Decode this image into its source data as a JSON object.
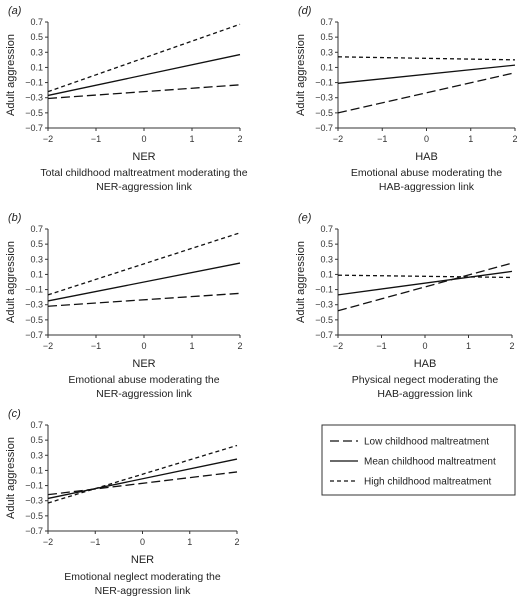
{
  "legend": {
    "entries": [
      {
        "label": "Low childhood maltreatment",
        "style": "long-dash"
      },
      {
        "label": "Mean childhood maltreatment",
        "style": "solid"
      },
      {
        "label": "High childhood maltreatment",
        "style": "short-dash"
      }
    ]
  },
  "chart_data": [
    {
      "panel": "(a)",
      "type": "line",
      "xlabel": "NER",
      "ylabel": "Adult aggression",
      "caption": [
        "Total childhood maltreatment moderating the",
        "NER-aggression link"
      ],
      "xlim": [
        -2,
        2
      ],
      "ylim": [
        -0.7,
        0.7
      ],
      "xticks": [
        "-2",
        "-1",
        "0",
        "1",
        "2"
      ],
      "yticks": [
        "0.7",
        "0.5",
        "0.3",
        "0.1",
        "-0.1",
        "-0.3",
        "-0.5",
        "-0.7"
      ],
      "x": [
        -2,
        2
      ],
      "series": [
        {
          "name": "Low childhood maltreatment",
          "style": "long-dash",
          "values": [
            -0.31,
            -0.13
          ]
        },
        {
          "name": "Mean childhood maltreatment",
          "style": "solid",
          "values": [
            -0.27,
            0.27
          ]
        },
        {
          "name": "High childhood maltreatment",
          "style": "short-dash",
          "values": [
            -0.22,
            0.67
          ]
        }
      ]
    },
    {
      "panel": "(b)",
      "type": "line",
      "xlabel": "NER",
      "ylabel": "Adult aggression",
      "caption": [
        "Emotional abuse moderating the",
        "NER-aggression link"
      ],
      "xlim": [
        -2,
        2
      ],
      "ylim": [
        -0.7,
        0.7
      ],
      "xticks": [
        "-2",
        "-1",
        "0",
        "1",
        "2"
      ],
      "yticks": [
        "0.7",
        "0.5",
        "0.3",
        "0.1",
        "-0.1",
        "-0.3",
        "-0.5",
        "-0.7"
      ],
      "x": [
        -2,
        2
      ],
      "series": [
        {
          "name": "Low childhood maltreatment",
          "style": "long-dash",
          "values": [
            -0.32,
            -0.15
          ]
        },
        {
          "name": "Mean childhood maltreatment",
          "style": "solid",
          "values": [
            -0.25,
            0.25
          ]
        },
        {
          "name": "High childhood maltreatment",
          "style": "short-dash",
          "values": [
            -0.17,
            0.65
          ]
        }
      ]
    },
    {
      "panel": "(c)",
      "type": "line",
      "xlabel": "NER",
      "ylabel": "Adult aggression",
      "caption": [
        "Emotional neglect moderating the",
        "NER-aggression link"
      ],
      "xlim": [
        -2,
        2
      ],
      "ylim": [
        -0.7,
        0.7
      ],
      "xticks": [
        "-2",
        "-1",
        "0",
        "1",
        "2"
      ],
      "yticks": [
        "0.7",
        "0.5",
        "0.3",
        "0.1",
        "-0.1",
        "-0.3",
        "-0.5",
        "-0.7"
      ],
      "x": [
        -2,
        2
      ],
      "series": [
        {
          "name": "Low childhood maltreatment",
          "style": "long-dash",
          "values": [
            -0.22,
            0.08
          ]
        },
        {
          "name": "Mean childhood maltreatment",
          "style": "solid",
          "values": [
            -0.27,
            0.25
          ]
        },
        {
          "name": "High childhood maltreatment",
          "style": "short-dash",
          "values": [
            -0.33,
            0.43
          ]
        }
      ]
    },
    {
      "panel": "(d)",
      "type": "line",
      "xlabel": "HAB",
      "ylabel": "Adult aggression",
      "caption": [
        "Emotional abuse moderating the",
        "HAB-aggression link"
      ],
      "xlim": [
        -2,
        2
      ],
      "ylim": [
        -0.7,
        0.7
      ],
      "xticks": [
        "-2",
        "-1",
        "0",
        "1",
        "2"
      ],
      "yticks": [
        "0.7",
        "0.5",
        "0.3",
        "0.1",
        "-0.1",
        "-0.3",
        "-0.5",
        "-0.7"
      ],
      "x": [
        -2,
        2
      ],
      "series": [
        {
          "name": "Low childhood maltreatment",
          "style": "long-dash",
          "values": [
            -0.5,
            0.03
          ]
        },
        {
          "name": "Mean childhood maltreatment",
          "style": "solid",
          "values": [
            -0.11,
            0.13
          ]
        },
        {
          "name": "High childhood maltreatment",
          "style": "short-dash",
          "values": [
            0.24,
            0.2
          ]
        }
      ]
    },
    {
      "panel": "(e)",
      "type": "line",
      "xlabel": "HAB",
      "ylabel": "Adult aggression",
      "caption": [
        "Physical negect moderating the",
        "HAB-aggression link"
      ],
      "xlim": [
        -2,
        2
      ],
      "ylim": [
        -0.7,
        0.7
      ],
      "xticks": [
        "-2",
        "-1",
        "0",
        "1",
        "2"
      ],
      "yticks": [
        "0.7",
        "0.5",
        "0.3",
        "0.1",
        "-0.1",
        "-0.3",
        "-0.5",
        "-0.7"
      ],
      "x": [
        -2,
        2
      ],
      "series": [
        {
          "name": "Low childhood maltreatment",
          "style": "long-dash",
          "values": [
            -0.38,
            0.25
          ]
        },
        {
          "name": "Mean childhood maltreatment",
          "style": "solid",
          "values": [
            -0.17,
            0.14
          ]
        },
        {
          "name": "High childhood maltreatment",
          "style": "short-dash",
          "values": [
            0.09,
            0.06
          ]
        }
      ]
    }
  ]
}
